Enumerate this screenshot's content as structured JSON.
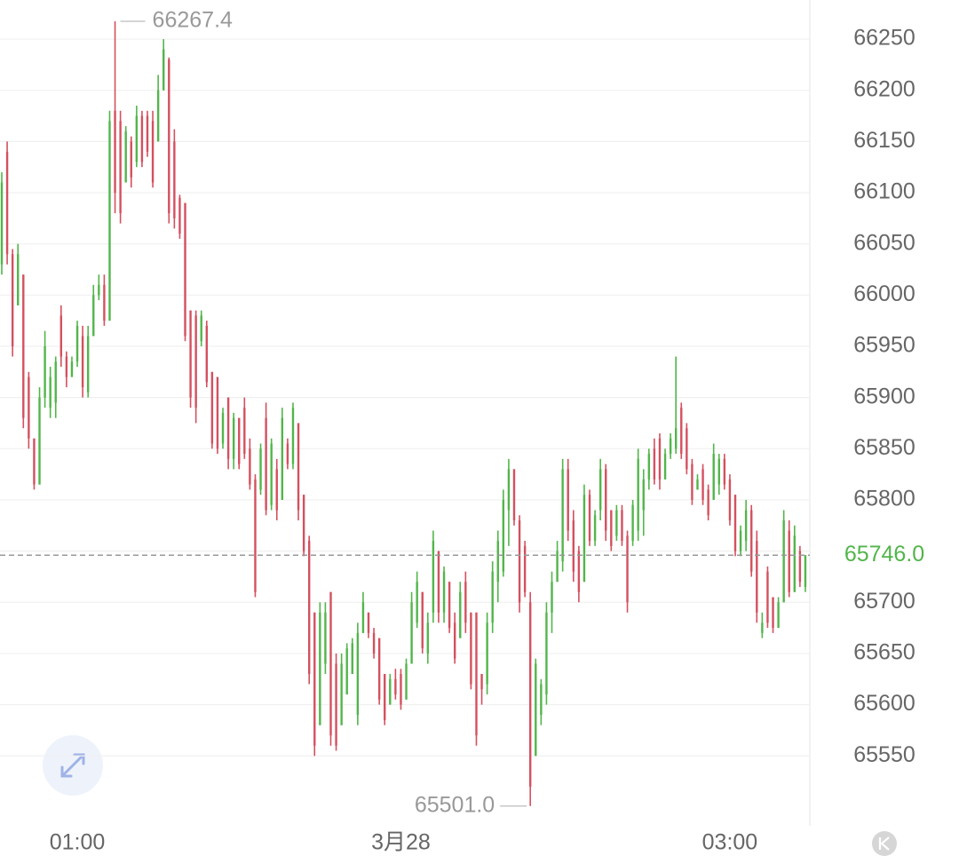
{
  "chart_data": {
    "type": "candlestick",
    "up_color": "#52b54b",
    "down_color": "#d4505f",
    "xlim": [
      -0.33,
      149.5
    ],
    "ylim": [
      65481.7,
      66288.2
    ],
    "yticks": [
      65550,
      65600,
      65650,
      65700,
      65750,
      65800,
      65850,
      65900,
      65950,
      66000,
      66050,
      66100,
      66150,
      66200,
      66250
    ],
    "xticks": [
      {
        "value": 14,
        "label": "01:00"
      },
      {
        "value": 74,
        "label": "3月28"
      },
      {
        "value": 135,
        "label": "03:00"
      }
    ],
    "grid": true,
    "last_price": {
      "value": 65746.0,
      "label": "65746.0"
    },
    "high_label": "66267.4",
    "low_label": "65501.0",
    "candles": [
      [
        66030,
        66120,
        66020,
        66110
      ],
      [
        66140,
        66150,
        66030,
        66040
      ],
      [
        66040,
        66045,
        65940,
        65950
      ],
      [
        65990,
        66050,
        65990,
        66040
      ],
      [
        66020,
        66020,
        65870,
        65880
      ],
      [
        65920,
        65925,
        65850,
        65860
      ],
      [
        65860,
        65860,
        65810,
        65815
      ],
      [
        65815,
        65910,
        65815,
        65900
      ],
      [
        65900,
        65965,
        65890,
        65950
      ],
      [
        65890,
        65930,
        65880,
        65920
      ],
      [
        65895,
        65940,
        65880,
        65935
      ],
      [
        65980,
        65990,
        65930,
        65940
      ],
      [
        65940,
        65945,
        65910,
        65920
      ],
      [
        65920,
        65940,
        65920,
        65935
      ],
      [
        65935,
        65975,
        65930,
        65970
      ],
      [
        65960,
        65970,
        65900,
        65910
      ],
      [
        65905,
        65970,
        65900,
        65960
      ],
      [
        65960,
        66010,
        65960,
        66000
      ],
      [
        66000,
        66020,
        65995,
        66010
      ],
      [
        66010,
        66020,
        65970,
        65975
      ],
      [
        65975,
        66180,
        65975,
        66170
      ],
      [
        66180,
        66267.4,
        66080,
        66100
      ],
      [
        66170,
        66180,
        66070,
        66080
      ],
      [
        66110,
        66165,
        66110,
        66160
      ],
      [
        66150,
        66155,
        66105,
        66115
      ],
      [
        66130,
        66185,
        66125,
        66175
      ],
      [
        66175,
        66180,
        66125,
        66130
      ],
      [
        66175,
        66180,
        66135,
        66140
      ],
      [
        66170,
        66180,
        66105,
        66110
      ],
      [
        66150,
        66215,
        66150,
        66200
      ],
      [
        66200,
        66250,
        66200,
        66240
      ],
      [
        66230,
        66232,
        66070,
        66080
      ],
      [
        66150,
        66162,
        66065,
        66075
      ],
      [
        66095,
        66098,
        66055,
        66060
      ],
      [
        66090,
        66090,
        65955,
        65960
      ],
      [
        65985,
        65985,
        65890,
        65900
      ],
      [
        65980,
        65985,
        65875,
        65890
      ],
      [
        65955,
        65985,
        65950,
        65980
      ],
      [
        65970,
        65975,
        65910,
        65915
      ],
      [
        65925,
        65925,
        65850,
        65855
      ],
      [
        65920,
        65920,
        65845,
        65850
      ],
      [
        65855,
        65890,
        65850,
        65885
      ],
      [
        65900,
        65900,
        65830,
        65840
      ],
      [
        65840,
        65885,
        65830,
        65880
      ],
      [
        65880,
        65880,
        65830,
        65835
      ],
      [
        65890,
        65900,
        65840,
        65845
      ],
      [
        65850,
        65860,
        65810,
        65815
      ],
      [
        65820,
        65825,
        65705,
        65710
      ],
      [
        65810,
        65855,
        65805,
        65850
      ],
      [
        65880,
        65895,
        65785,
        65790
      ],
      [
        65795,
        65860,
        65790,
        65855
      ],
      [
        65830,
        65840,
        65780,
        65790
      ],
      [
        65800,
        65890,
        65800,
        65880
      ],
      [
        65855,
        65860,
        65830,
        65835
      ],
      [
        65835,
        65895,
        65830,
        65890
      ],
      [
        65875,
        65875,
        65780,
        65790
      ],
      [
        65805,
        65805,
        65745,
        65750
      ],
      [
        65760,
        65765,
        65620,
        65630
      ],
      [
        65690,
        65690,
        65550,
        65560
      ],
      [
        65580,
        65700,
        65580,
        65690
      ],
      [
        65640,
        65700,
        65630,
        65690
      ],
      [
        65710,
        65710,
        65560,
        65570
      ],
      [
        65640,
        65650,
        65555,
        65560
      ],
      [
        65580,
        65650,
        65580,
        65640
      ],
      [
        65610,
        65660,
        65610,
        65655
      ],
      [
        65630,
        65665,
        65630,
        65660
      ],
      [
        65590,
        65680,
        65580,
        65670
      ],
      [
        65670,
        65710,
        65670,
        65700
      ],
      [
        65690,
        65690,
        65665,
        65670
      ],
      [
        65670,
        65675,
        65645,
        65650
      ],
      [
        65665,
        65665,
        65600,
        65605
      ],
      [
        65630,
        65630,
        65580,
        65585
      ],
      [
        65600,
        65630,
        65600,
        65625
      ],
      [
        65625,
        65635,
        65605,
        65610
      ],
      [
        65630,
        65635,
        65595,
        65600
      ],
      [
        65605,
        65645,
        65605,
        65640
      ],
      [
        65640,
        65710,
        65640,
        65700
      ],
      [
        65680,
        65730,
        65675,
        65720
      ],
      [
        65710,
        65710,
        65650,
        65655
      ],
      [
        65650,
        65690,
        65640,
        65680
      ],
      [
        65690,
        65770,
        65680,
        65760
      ],
      [
        65750,
        65750,
        65680,
        65690
      ],
      [
        65690,
        65735,
        65680,
        65730
      ],
      [
        65720,
        65720,
        65670,
        65675
      ],
      [
        65680,
        65690,
        65640,
        65645
      ],
      [
        65665,
        65720,
        65665,
        65710
      ],
      [
        65720,
        65730,
        65670,
        65680
      ],
      [
        65690,
        65690,
        65615,
        65620
      ],
      [
        65690,
        65690,
        65560,
        65570
      ],
      [
        65630,
        65630,
        65600,
        65615
      ],
      [
        65620,
        65690,
        65610,
        65680
      ],
      [
        65680,
        65740,
        65670,
        65730
      ],
      [
        65720,
        65770,
        65700,
        65760
      ],
      [
        65730,
        65810,
        65725,
        65800
      ],
      [
        65790,
        65840,
        65755,
        65830
      ],
      [
        65830,
        65830,
        65775,
        65780
      ],
      [
        65780,
        65785,
        65690,
        65700
      ],
      [
        65755,
        65760,
        65705,
        65710
      ],
      [
        65700,
        65710,
        65501.0,
        65520
      ],
      [
        65550,
        65645,
        65550,
        65640
      ],
      [
        65590,
        65625,
        65580,
        65620
      ],
      [
        65610,
        65700,
        65600,
        65690
      ],
      [
        65690,
        65730,
        65670,
        65720
      ],
      [
        65720,
        65760,
        65720,
        65750
      ],
      [
        65740,
        65840,
        65730,
        65830
      ],
      [
        65830,
        65840,
        65760,
        65770
      ],
      [
        65780,
        65790,
        65720,
        65730
      ],
      [
        65750,
        65755,
        65700,
        65710
      ],
      [
        65720,
        65815,
        65720,
        65805
      ],
      [
        65805,
        65810,
        65755,
        65760
      ],
      [
        65760,
        65790,
        65755,
        65785
      ],
      [
        65790,
        65840,
        65780,
        65830
      ],
      [
        65830,
        65835,
        65760,
        65770
      ],
      [
        65790,
        65790,
        65750,
        65755
      ],
      [
        65765,
        65795,
        65760,
        65790
      ],
      [
        65790,
        65795,
        65755,
        65760
      ],
      [
        65765,
        65770,
        65690,
        65700
      ],
      [
        65760,
        65800,
        65755,
        65795
      ],
      [
        65770,
        65850,
        65760,
        65840
      ],
      [
        65790,
        65830,
        65765,
        65820
      ],
      [
        65820,
        65850,
        65810,
        65845
      ],
      [
        65850,
        65860,
        65815,
        65820
      ],
      [
        65860,
        65865,
        65810,
        65820
      ],
      [
        65820,
        65850,
        65820,
        65845
      ],
      [
        65845,
        65865,
        65840,
        65860
      ],
      [
        65850,
        65940,
        65845,
        65870
      ],
      [
        65890,
        65895,
        65840,
        65845
      ],
      [
        65870,
        65875,
        65825,
        65830
      ],
      [
        65835,
        65840,
        65795,
        65800
      ],
      [
        65810,
        65825,
        65810,
        65820
      ],
      [
        65830,
        65835,
        65795,
        65800
      ],
      [
        65810,
        65815,
        65780,
        65785
      ],
      [
        65800,
        65855,
        65800,
        65845
      ],
      [
        65815,
        65845,
        65805,
        65840
      ],
      [
        65840,
        65845,
        65810,
        65815
      ],
      [
        65820,
        65825,
        65775,
        65780
      ],
      [
        65805,
        65805,
        65745,
        65750
      ],
      [
        65750,
        65775,
        65745,
        65770
      ],
      [
        65760,
        65800,
        65750,
        65790
      ],
      [
        65790,
        65795,
        65725,
        65730
      ],
      [
        65760,
        65770,
        65680,
        65690
      ],
      [
        65670,
        65690,
        65665,
        65680
      ],
      [
        65730,
        65735,
        65675,
        65680
      ],
      [
        65705,
        65705,
        65670,
        65675
      ],
      [
        65675,
        65705,
        65675,
        65700
      ],
      [
        65700,
        65790,
        65700,
        65780
      ],
      [
        65770,
        65780,
        65705,
        65710
      ],
      [
        65710,
        65775,
        65710,
        65765
      ],
      [
        65750,
        65755,
        65715,
        65720
      ],
      [
        65715,
        65746.0,
        65710,
        65746.0
      ]
    ]
  }
}
